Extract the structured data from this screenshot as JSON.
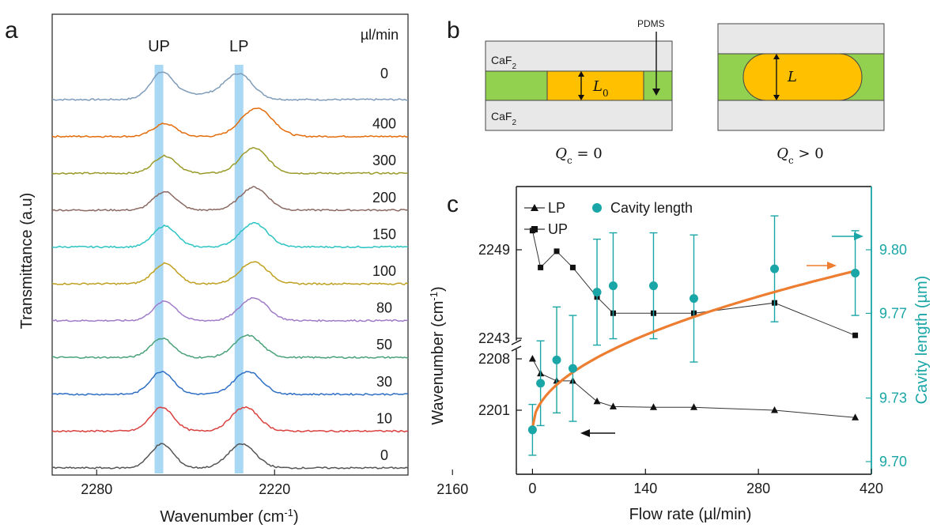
{
  "panel_labels": {
    "a": "a",
    "b": "b",
    "c": "c"
  },
  "colors": {
    "highlight": "#a9d8f5",
    "orange": "#ed7d31",
    "teal": "#1aa6a6",
    "green": "#92d050",
    "yellow": "#ffc000",
    "caf2": "#e8e8e8"
  },
  "chart_data": [
    {
      "type": "line",
      "panel": "a",
      "xlabel": "Wavenumber (cm-1)",
      "ylabel": "Transmittance (a.u)",
      "xaxis_reversed": true,
      "xlim": [
        2175,
        2295
      ],
      "xticks": [
        "2280",
        "2220",
        "2160"
      ],
      "xtick_values": [
        2280,
        2220,
        2160
      ],
      "band_labels": [
        "UP",
        "LP"
      ],
      "band_centers": [
        2259,
        2232
      ],
      "flow_header": "µl/min",
      "series": [
        {
          "name": "0",
          "color": "#7f9cba",
          "up": 2258,
          "lp": 2232,
          "up_h": 0.55,
          "lp_h": 0.52
        },
        {
          "name": "400",
          "color": "#e46c0a",
          "up": 2257,
          "lp": 2226,
          "up_h": 0.28,
          "lp_h": 0.62
        },
        {
          "name": "300",
          "color": "#9a9a2a",
          "up": 2257,
          "lp": 2227,
          "up_h": 0.38,
          "lp_h": 0.55
        },
        {
          "name": "200",
          "color": "#8b6a62",
          "up": 2257,
          "lp": 2227,
          "up_h": 0.4,
          "lp_h": 0.5
        },
        {
          "name": "150",
          "color": "#2ec4c4",
          "up": 2257,
          "lp": 2227,
          "up_h": 0.46,
          "lp_h": 0.52
        },
        {
          "name": "100",
          "color": "#bfa020",
          "up": 2257,
          "lp": 2227,
          "up_h": 0.44,
          "lp_h": 0.48
        },
        {
          "name": "80",
          "color": "#a07cc8",
          "up": 2257,
          "lp": 2227,
          "up_h": 0.42,
          "lp_h": 0.5
        },
        {
          "name": "50",
          "color": "#4aa27a",
          "up": 2258,
          "lp": 2229,
          "up_h": 0.42,
          "lp_h": 0.48
        },
        {
          "name": "30",
          "color": "#2f6fc4",
          "up": 2258,
          "lp": 2229,
          "up_h": 0.5,
          "lp_h": 0.5
        },
        {
          "name": "10",
          "color": "#d9413f",
          "up": 2258,
          "lp": 2230,
          "up_h": 0.52,
          "lp_h": 0.52
        },
        {
          "name": "0",
          "color": "#555555",
          "up": 2258,
          "lp": 2231,
          "up_h": 0.52,
          "lp_h": 0.52
        }
      ]
    },
    {
      "type": "scatter",
      "panel": "c",
      "xlabel": "Flow rate (µl/min)",
      "ylabel_left": "Wavenumber (cm-1)",
      "ylabel_right": "Cavity length (µm)",
      "xlim": [
        -20,
        420
      ],
      "xticks": [
        0,
        140,
        280,
        420
      ],
      "yticks_left_upper": [
        2243,
        2249
      ],
      "yticks_left_lower": [
        2201,
        2208
      ],
      "yticks_right": [
        9.7,
        9.73,
        9.77,
        9.8
      ],
      "ylim_right": [
        9.695,
        9.825
      ],
      "legend": [
        "LP",
        "Cavity length",
        "UP"
      ],
      "x": [
        0,
        10,
        30,
        50,
        80,
        100,
        150,
        200,
        300,
        400
      ],
      "UP": [
        2250.3,
        2247.8,
        2248.9,
        2247.8,
        2245.8,
        2244.7,
        2244.7,
        2244.7,
        2245.4,
        2243.2
      ],
      "LP": [
        2208.0,
        2206.0,
        2205.0,
        2205.0,
        2202.2,
        2201.5,
        2201.4,
        2201.4,
        2201.0,
        2200.0
      ],
      "cavity_length": [
        9.715,
        9.737,
        9.748,
        9.744,
        9.78,
        9.783,
        9.783,
        9.777,
        9.791,
        9.789
      ],
      "cavity_error": [
        0.012,
        0.02,
        0.025,
        0.025,
        0.025,
        0.025,
        0.025,
        0.03,
        0.025,
        0.02
      ],
      "fit_label": "sqrt fit"
    }
  ],
  "schematic": {
    "caf2_top": "CaF",
    "caf2_bottom": "CaF",
    "caf2_sub": "2",
    "pdms": "PDMS",
    "L0": "L",
    "L0_sub": "0",
    "L": "L",
    "caption_left": "Q",
    "caption_left_sub": "c",
    "caption_left_rest": " = 0",
    "caption_right": "Q",
    "caption_right_sub": "c",
    "caption_right_rest": " > 0"
  }
}
